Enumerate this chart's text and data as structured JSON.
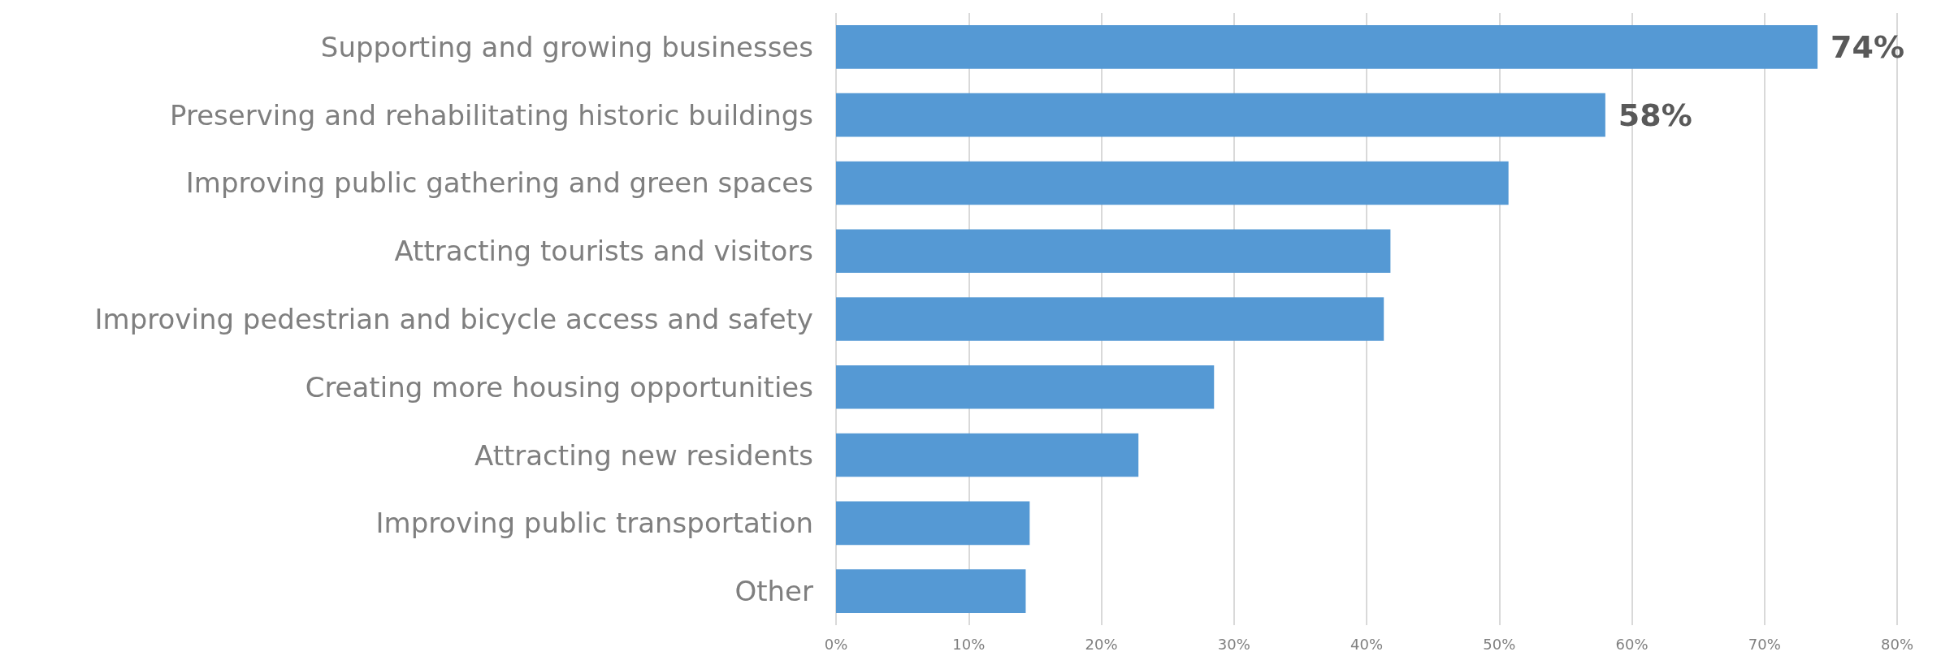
{
  "chart_data": {
    "type": "bar",
    "orientation": "horizontal",
    "categories": [
      "Supporting and growing businesses",
      "Preserving and rehabilitating historic buildings",
      "Improving public gathering and green spaces",
      "Attracting tourists and visitors",
      "Improving pedestrian and bicycle access and safety",
      "Creating more housing opportunities",
      "Attracting new residents",
      "Improving public transportation",
      "Other"
    ],
    "values": [
      74,
      58,
      50.7,
      41.8,
      41.3,
      28.5,
      22.8,
      14.6,
      14.3
    ],
    "value_labels": [
      "74%",
      "58%",
      null,
      null,
      null,
      null,
      null,
      null,
      null
    ],
    "color": "#5599d4",
    "xlim": [
      0,
      80
    ],
    "xticks": [
      {
        "value": 0,
        "label": "0%"
      },
      {
        "value": 10,
        "label": "10%"
      },
      {
        "value": 20,
        "label": "20%"
      },
      {
        "value": 30,
        "label": "30%"
      },
      {
        "value": 40,
        "label": "40%"
      },
      {
        "value": 50,
        "label": "50%"
      },
      {
        "value": 60,
        "label": "60%"
      },
      {
        "value": 70,
        "label": "70%"
      },
      {
        "value": 80,
        "label": "80%"
      }
    ],
    "grid": "x"
  }
}
